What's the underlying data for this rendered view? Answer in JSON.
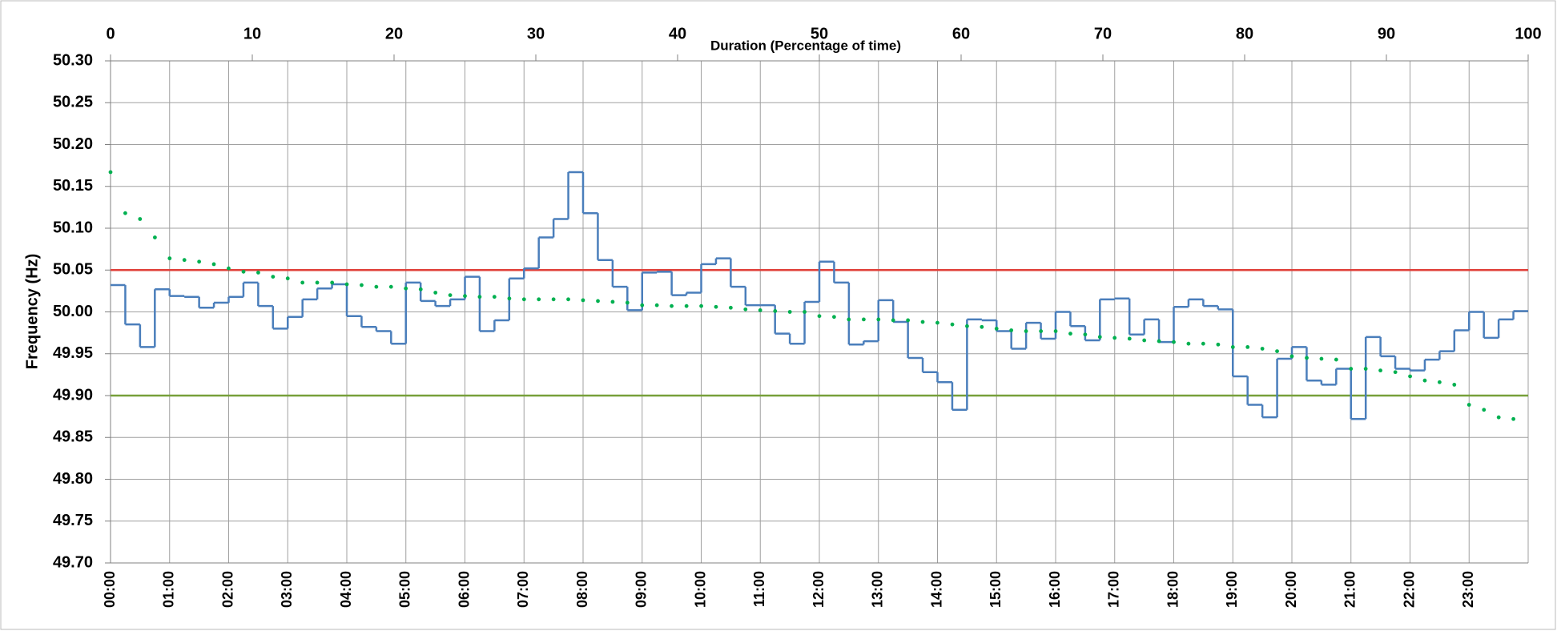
{
  "chart_data": {
    "type": "line",
    "y_label": "Frequency (Hz)",
    "x2_label": "Duration (Percentage of time)",
    "categories": [
      "00:00",
      null,
      null,
      null,
      "01:00",
      null,
      null,
      null,
      "02:00",
      null,
      null,
      null,
      "03:00",
      null,
      null,
      null,
      "04:00",
      null,
      null,
      null,
      "05:00",
      null,
      null,
      null,
      "06:00",
      null,
      null,
      null,
      "07:00",
      null,
      null,
      null,
      "08:00",
      null,
      null,
      null,
      "09:00",
      null,
      null,
      null,
      "10:00",
      null,
      null,
      null,
      "11:00",
      null,
      null,
      null,
      "12:00",
      null,
      null,
      null,
      "13:00",
      null,
      null,
      null,
      "14:00",
      null,
      null,
      null,
      "15:00",
      null,
      null,
      null,
      "16:00",
      null,
      null,
      null,
      "17:00",
      null,
      null,
      null,
      "18:00",
      null,
      null,
      null,
      "19:00",
      null,
      null,
      null,
      "20:00",
      null,
      null,
      null,
      "21:00",
      null,
      null,
      null,
      "22:00",
      null,
      null,
      null,
      "23:00",
      null,
      null,
      null
    ],
    "ylim": [
      49.7,
      50.3
    ],
    "yticks": [
      {
        "value": 49.7,
        "label": "49.70"
      },
      49.75,
      {
        "value": 49.8,
        "label": "49.80"
      },
      49.85,
      {
        "value": 49.9,
        "label": "49.90"
      },
      49.95,
      {
        "value": 50,
        "label": "50.00"
      },
      50.05,
      {
        "value": 50.1,
        "label": "50.10"
      },
      50.15,
      {
        "value": 50.2,
        "label": "50.20"
      },
      50.25,
      {
        "value": 50.3,
        "label": "50.30"
      }
    ],
    "x2lim": [
      0,
      100
    ],
    "x2ticks": [
      0,
      10,
      20,
      30,
      40,
      50,
      60,
      70,
      80,
      90,
      100
    ],
    "grid": true,
    "hlines": [
      {
        "value": 50.05,
        "color": "#e0403a"
      },
      {
        "value": 49.9,
        "color": "#77a03a"
      }
    ],
    "series": [
      {
        "color": "#4a7ebb",
        "style": "step",
        "values": [
          50.032,
          49.985,
          49.958,
          50.027,
          50.019,
          50.018,
          50.005,
          50.011,
          50.018,
          50.035,
          50.007,
          49.98,
          49.994,
          50.015,
          50.028,
          50.033,
          49.995,
          49.982,
          49.977,
          49.962,
          50.035,
          50.013,
          50.007,
          50.015,
          50.042,
          49.977,
          49.99,
          50.04,
          50.052,
          50.089,
          50.111,
          50.167,
          50.118,
          50.062,
          50.03,
          50.002,
          50.047,
          50.048,
          50.02,
          50.023,
          50.057,
          50.064,
          50.03,
          50.008,
          50.008,
          49.974,
          49.962,
          50.012,
          50.06,
          50.035,
          49.961,
          49.965,
          50.014,
          49.988,
          49.945,
          49.928,
          49.916,
          49.883,
          49.991,
          49.99,
          49.977,
          49.956,
          49.987,
          49.968,
          50.0,
          49.983,
          49.966,
          50.015,
          50.016,
          49.973,
          49.991,
          49.964,
          50.006,
          50.015,
          50.007,
          50.003,
          49.923,
          49.889,
          49.874,
          49.944,
          49.958,
          49.918,
          49.913,
          49.932,
          49.872,
          49.97,
          49.947,
          49.932,
          49.93,
          49.943,
          49.953,
          49.978,
          50.0,
          49.969,
          49.991,
          50.001
        ]
      },
      {
        "color": "#00b050",
        "style": "dots",
        "axis": "x2",
        "x": [
          0,
          1.04,
          2.08,
          3.13,
          4.17,
          5.21,
          6.25,
          7.29,
          8.33,
          9.38,
          10.42,
          11.46,
          12.5,
          13.54,
          14.58,
          15.63,
          16.67,
          17.71,
          18.75,
          19.79,
          20.83,
          21.88,
          22.92,
          23.96,
          25,
          26.04,
          27.08,
          28.13,
          29.17,
          30.21,
          31.25,
          32.29,
          33.33,
          34.38,
          35.42,
          36.46,
          37.5,
          38.54,
          39.58,
          40.63,
          41.67,
          42.71,
          43.75,
          44.79,
          45.83,
          46.88,
          47.92,
          48.96,
          50,
          51.04,
          52.08,
          53.13,
          54.17,
          55.21,
          56.25,
          57.29,
          58.33,
          59.38,
          60.42,
          61.46,
          62.5,
          63.54,
          64.58,
          65.63,
          66.67,
          67.71,
          68.75,
          69.79,
          70.83,
          71.88,
          72.92,
          73.96,
          75,
          76.04,
          77.08,
          78.13,
          79.17,
          80.21,
          81.25,
          82.29,
          83.33,
          84.38,
          85.42,
          86.46,
          87.5,
          88.54,
          89.58,
          90.63,
          91.67,
          92.71,
          93.75,
          94.79,
          95.83,
          96.88,
          97.92,
          98.96
        ],
        "values": [
          50.167,
          50.118,
          50.111,
          50.089,
          50.064,
          50.062,
          50.06,
          50.057,
          50.052,
          50.048,
          50.047,
          50.042,
          50.04,
          50.035,
          50.035,
          50.035,
          50.033,
          50.032,
          50.03,
          50.03,
          50.028,
          50.027,
          50.023,
          50.02,
          50.019,
          50.018,
          50.018,
          50.016,
          50.015,
          50.015,
          50.015,
          50.015,
          50.014,
          50.013,
          50.012,
          50.011,
          50.008,
          50.008,
          50.007,
          50.007,
          50.007,
          50.006,
          50.005,
          50.003,
          50.002,
          50.001,
          50.0,
          50.0,
          49.995,
          49.994,
          49.991,
          49.991,
          49.991,
          49.99,
          49.99,
          49.988,
          49.987,
          49.985,
          49.983,
          49.982,
          49.98,
          49.978,
          49.977,
          49.977,
          49.977,
          49.974,
          49.973,
          49.97,
          49.969,
          49.968,
          49.966,
          49.965,
          49.964,
          49.962,
          49.962,
          49.961,
          49.958,
          49.958,
          49.956,
          49.953,
          49.947,
          49.945,
          49.944,
          49.943,
          49.932,
          49.932,
          49.93,
          49.928,
          49.923,
          49.918,
          49.916,
          49.913,
          49.889,
          49.883,
          49.874,
          49.872
        ]
      }
    ]
  }
}
